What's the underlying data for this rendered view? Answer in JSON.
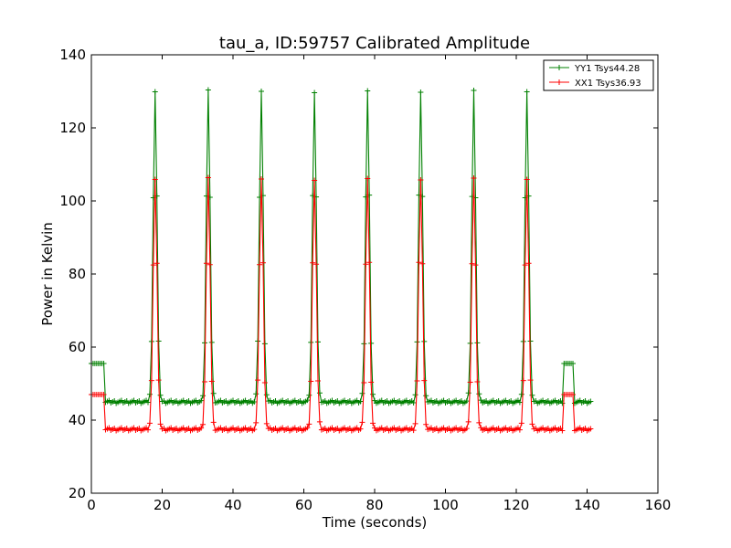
{
  "chart_data": {
    "type": "line",
    "title": "tau_a, ID:59757 Calibrated Amplitude",
    "xlabel": "Time (seconds)",
    "ylabel": "Power in Kelvin",
    "xlim": [
      0,
      160
    ],
    "ylim": [
      20,
      140
    ],
    "xticks": [
      0,
      20,
      40,
      60,
      80,
      100,
      120,
      140,
      160
    ],
    "yticks": [
      20,
      40,
      60,
      80,
      100,
      120,
      140
    ],
    "grid": false,
    "legend_position": "top-right",
    "marker": "+",
    "peak_times": [
      18,
      33,
      48,
      63,
      78,
      93,
      108,
      123
    ],
    "series": [
      {
        "name": "YY1 Tsys44.28",
        "color": "#008000",
        "initial_level": 55.5,
        "baseline": 45,
        "peak": 130,
        "cal_level": 55.5,
        "x_start": 0,
        "x_end": 141
      },
      {
        "name": "XX1 Tsys36.93",
        "color": "#ff0000",
        "initial_level": 47,
        "baseline": 37.5,
        "peak": 106,
        "cal_level": 47,
        "x_start": 0,
        "x_end": 141
      }
    ]
  }
}
